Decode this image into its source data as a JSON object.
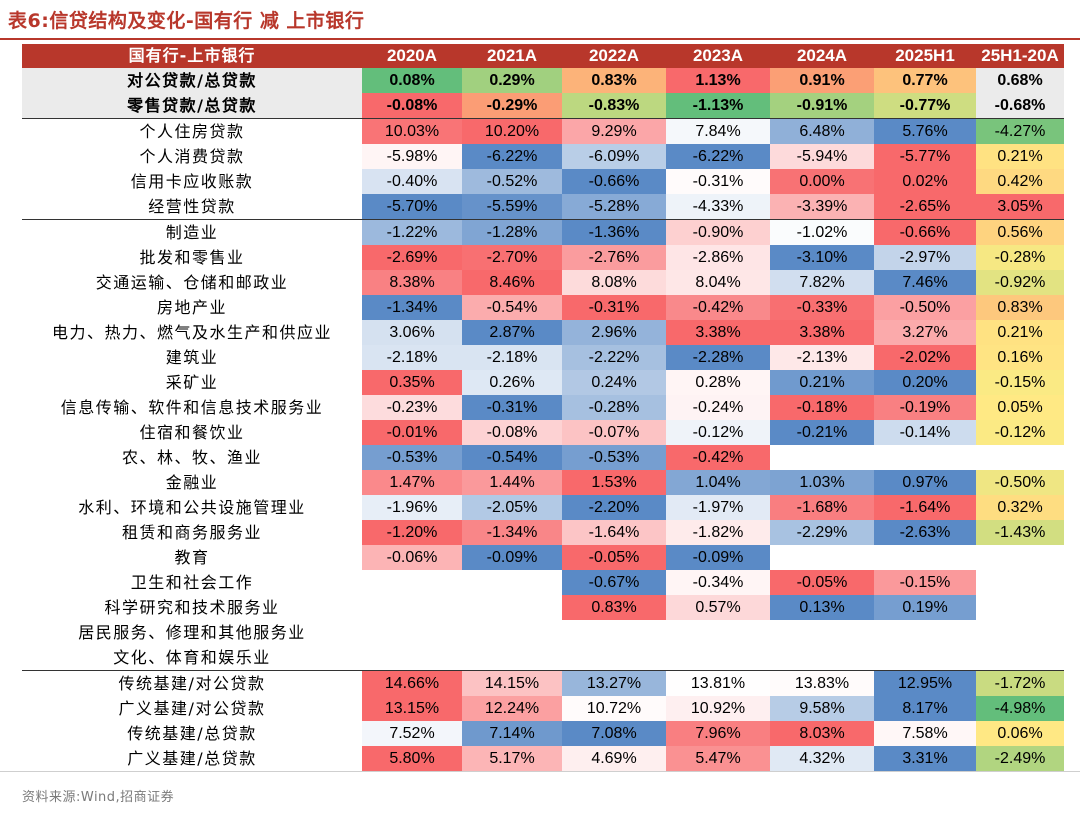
{
  "title": "表6:信贷结构及变化-国有行 减 上市银行",
  "source": "资料来源:Wind,招商证券",
  "header": {
    "row_label": "国有行-上市银行",
    "columns": [
      "2020A",
      "2021A",
      "2022A",
      "2023A",
      "2024A",
      "2025H1",
      "25H1-20A"
    ]
  },
  "colors": {
    "header_bg": "#b8372b",
    "high": "#f8696b",
    "mid": "#ffffff",
    "low": "#5a8ac6",
    "delta_high": "#f8696b",
    "delta_mid": "#ffeb84",
    "delta_low": "#63be7b"
  },
  "sections": [
    {
      "name": "top",
      "rows": [
        {
          "label": "对公贷款/总贷款",
          "values": [
            "0.08%",
            "0.29%",
            "0.83%",
            "1.13%",
            "0.91%",
            "0.77%",
            "0.68%"
          ],
          "nums": [
            0.08,
            0.29,
            0.83,
            1.13,
            0.91,
            0.77,
            0.68
          ]
        },
        {
          "label": "零售贷款/总贷款",
          "values": [
            "-0.08%",
            "-0.29%",
            "-0.83%",
            "-1.13%",
            "-0.91%",
            "-0.77%",
            "-0.68%"
          ],
          "nums": [
            -0.08,
            -0.29,
            -0.83,
            -1.13,
            -0.91,
            -0.77,
            -0.68
          ]
        }
      ]
    },
    {
      "name": "retail",
      "rows": [
        {
          "label": "个人住房贷款",
          "values": [
            "10.03%",
            "10.20%",
            "9.29%",
            "7.84%",
            "6.48%",
            "5.76%",
            "-4.27%"
          ],
          "nums": [
            10.03,
            10.2,
            9.29,
            7.84,
            6.48,
            5.76,
            -4.27
          ]
        },
        {
          "label": "个人消费贷款",
          "values": [
            "-5.98%",
            "-6.22%",
            "-6.09%",
            "-6.22%",
            "-5.94%",
            "-5.77%",
            "0.21%"
          ],
          "nums": [
            -5.98,
            -6.22,
            -6.09,
            -6.22,
            -5.94,
            -5.77,
            0.21
          ]
        },
        {
          "label": "信用卡应收账款",
          "values": [
            "-0.40%",
            "-0.52%",
            "-0.66%",
            "-0.31%",
            "0.00%",
            "0.02%",
            "0.42%"
          ],
          "nums": [
            -0.4,
            -0.52,
            -0.66,
            -0.31,
            0.0,
            0.02,
            0.42
          ]
        },
        {
          "label": "经营性贷款",
          "values": [
            "-5.70%",
            "-5.59%",
            "-5.28%",
            "-4.33%",
            "-3.39%",
            "-2.65%",
            "3.05%"
          ],
          "nums": [
            -5.7,
            -5.59,
            -5.28,
            -4.33,
            -3.39,
            -2.65,
            3.05
          ]
        }
      ]
    },
    {
      "name": "industry",
      "rows": [
        {
          "label": "制造业",
          "values": [
            "-1.22%",
            "-1.28%",
            "-1.36%",
            "-0.90%",
            "-1.02%",
            "-0.66%",
            "0.56%"
          ],
          "nums": [
            -1.22,
            -1.28,
            -1.36,
            -0.9,
            -1.02,
            -0.66,
            0.56
          ]
        },
        {
          "label": "批发和零售业",
          "values": [
            "-2.69%",
            "-2.70%",
            "-2.76%",
            "-2.86%",
            "-3.10%",
            "-2.97%",
            "-0.28%"
          ],
          "nums": [
            -2.69,
            -2.7,
            -2.76,
            -2.86,
            -3.1,
            -2.97,
            -0.28
          ]
        },
        {
          "label": "交通运输、仓储和邮政业",
          "values": [
            "8.38%",
            "8.46%",
            "8.08%",
            "8.04%",
            "7.82%",
            "7.46%",
            "-0.92%"
          ],
          "nums": [
            8.38,
            8.46,
            8.08,
            8.04,
            7.82,
            7.46,
            -0.92
          ]
        },
        {
          "label": "房地产业",
          "values": [
            "-1.34%",
            "-0.54%",
            "-0.31%",
            "-0.42%",
            "-0.33%",
            "-0.50%",
            "0.83%"
          ],
          "nums": [
            -1.34,
            -0.54,
            -0.31,
            -0.42,
            -0.33,
            -0.5,
            0.83
          ]
        },
        {
          "label": "电力、热力、燃气及水生产和供应业",
          "values": [
            "3.06%",
            "2.87%",
            "2.96%",
            "3.38%",
            "3.38%",
            "3.27%",
            "0.21%"
          ],
          "nums": [
            3.06,
            2.87,
            2.96,
            3.38,
            3.38,
            3.27,
            0.21
          ]
        },
        {
          "label": "建筑业",
          "values": [
            "-2.18%",
            "-2.18%",
            "-2.22%",
            "-2.28%",
            "-2.13%",
            "-2.02%",
            "0.16%"
          ],
          "nums": [
            -2.18,
            -2.18,
            -2.22,
            -2.28,
            -2.13,
            -2.02,
            0.16
          ]
        },
        {
          "label": "采矿业",
          "values": [
            "0.35%",
            "0.26%",
            "0.24%",
            "0.28%",
            "0.21%",
            "0.20%",
            "-0.15%"
          ],
          "nums": [
            0.35,
            0.26,
            0.24,
            0.28,
            0.21,
            0.2,
            -0.15
          ]
        },
        {
          "label": "信息传输、软件和信息技术服务业",
          "values": [
            "-0.23%",
            "-0.31%",
            "-0.28%",
            "-0.24%",
            "-0.18%",
            "-0.19%",
            "0.05%"
          ],
          "nums": [
            -0.23,
            -0.31,
            -0.28,
            -0.24,
            -0.18,
            -0.19,
            0.05
          ]
        },
        {
          "label": "住宿和餐饮业",
          "values": [
            "-0.01%",
            "-0.08%",
            "-0.07%",
            "-0.12%",
            "-0.21%",
            "-0.14%",
            "-0.12%"
          ],
          "nums": [
            -0.01,
            -0.08,
            -0.07,
            -0.12,
            -0.21,
            -0.14,
            -0.12
          ]
        },
        {
          "label": "农、林、牧、渔业",
          "values": [
            "-0.53%",
            "-0.54%",
            "-0.53%",
            "-0.42%",
            "",
            "",
            ""
          ],
          "nums": [
            -0.53,
            -0.54,
            -0.53,
            -0.42,
            null,
            null,
            null
          ]
        },
        {
          "label": "金融业",
          "values": [
            "1.47%",
            "1.44%",
            "1.53%",
            "1.04%",
            "1.03%",
            "0.97%",
            "-0.50%"
          ],
          "nums": [
            1.47,
            1.44,
            1.53,
            1.04,
            1.03,
            0.97,
            -0.5
          ]
        },
        {
          "label": "水利、环境和公共设施管理业",
          "values": [
            "-1.96%",
            "-2.05%",
            "-2.20%",
            "-1.97%",
            "-1.68%",
            "-1.64%",
            "0.32%"
          ],
          "nums": [
            -1.96,
            -2.05,
            -2.2,
            -1.97,
            -1.68,
            -1.64,
            0.32
          ]
        },
        {
          "label": "租赁和商务服务业",
          "values": [
            "-1.20%",
            "-1.34%",
            "-1.64%",
            "-1.82%",
            "-2.29%",
            "-2.63%",
            "-1.43%"
          ],
          "nums": [
            -1.2,
            -1.34,
            -1.64,
            -1.82,
            -2.29,
            -2.63,
            -1.43
          ]
        },
        {
          "label": "教育",
          "values": [
            "-0.06%",
            "-0.09%",
            "-0.05%",
            "-0.09%",
            "",
            "",
            ""
          ],
          "nums": [
            -0.06,
            -0.09,
            -0.05,
            -0.09,
            null,
            null,
            null
          ]
        },
        {
          "label": "卫生和社会工作",
          "values": [
            "",
            "",
            "-0.67%",
            "-0.34%",
            "-0.05%",
            "-0.15%",
            ""
          ],
          "nums": [
            null,
            null,
            -0.67,
            -0.34,
            -0.05,
            -0.15,
            null
          ]
        },
        {
          "label": "科学研究和技术服务业",
          "values": [
            "",
            "",
            "0.83%",
            "0.57%",
            "0.13%",
            "0.19%",
            ""
          ],
          "nums": [
            null,
            null,
            0.83,
            0.57,
            0.13,
            0.19,
            null
          ]
        },
        {
          "label": "居民服务、修理和其他服务业",
          "values": [
            "",
            "",
            "",
            "",
            "",
            "",
            ""
          ],
          "nums": [
            null,
            null,
            null,
            null,
            null,
            null,
            null
          ]
        },
        {
          "label": "文化、体育和娱乐业",
          "values": [
            "",
            "",
            "",
            "",
            "",
            "",
            ""
          ],
          "nums": [
            null,
            null,
            null,
            null,
            null,
            null,
            null
          ]
        }
      ]
    },
    {
      "name": "infra",
      "rows": [
        {
          "label": "传统基建/对公贷款",
          "values": [
            "14.66%",
            "14.15%",
            "13.27%",
            "13.81%",
            "13.83%",
            "12.95%",
            "-1.72%"
          ],
          "nums": [
            14.66,
            14.15,
            13.27,
            13.81,
            13.83,
            12.95,
            -1.72
          ]
        },
        {
          "label": "广义基建/对公贷款",
          "values": [
            "13.15%",
            "12.24%",
            "10.72%",
            "10.92%",
            "9.58%",
            "8.17%",
            "-4.98%"
          ],
          "nums": [
            13.15,
            12.24,
            10.72,
            10.92,
            9.58,
            8.17,
            -4.98
          ]
        },
        {
          "label": "传统基建/总贷款",
          "values": [
            "7.52%",
            "7.14%",
            "7.08%",
            "7.96%",
            "8.03%",
            "7.58%",
            "0.06%"
          ],
          "nums": [
            7.52,
            7.14,
            7.08,
            7.96,
            8.03,
            7.58,
            0.06
          ]
        },
        {
          "label": "广义基建/总贷款",
          "values": [
            "5.80%",
            "5.17%",
            "4.69%",
            "5.47%",
            "4.32%",
            "3.31%",
            "-2.49%"
          ],
          "nums": [
            5.8,
            5.17,
            4.69,
            5.47,
            4.32,
            3.31,
            -2.49
          ]
        }
      ]
    }
  ]
}
